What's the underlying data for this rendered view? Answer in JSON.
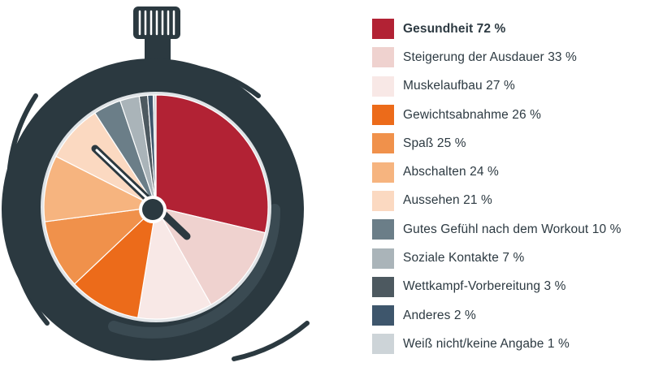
{
  "chart_data": {
    "type": "pie",
    "title": "",
    "slices": [
      {
        "label": "Gesundheit 72 %",
        "value": 72,
        "color": "#b22234"
      },
      {
        "label": "Steigerung der Ausdauer 33 %",
        "value": 33,
        "color": "#efd2cf"
      },
      {
        "label": "Muskelaufbau 27 %",
        "value": 27,
        "color": "#f8e8e6"
      },
      {
        "label": "Gewichtsabnahme 26 %",
        "value": 26,
        "color": "#ec6b1a"
      },
      {
        "label": "Spaß 25 %",
        "value": 25,
        "color": "#f0914b"
      },
      {
        "label": "Abschalten 24 %",
        "value": 24,
        "color": "#f6b47f"
      },
      {
        "label": "Aussehen 21 %",
        "value": 21,
        "color": "#fbd9c1"
      },
      {
        "label": "Gutes Gefühl nach dem Workout 10 %",
        "value": 10,
        "color": "#6b7e88"
      },
      {
        "label": "Soziale Kontakte 7 %",
        "value": 7,
        "color": "#aab4b9"
      },
      {
        "label": "Wettkampf-Vorbereitung 3 %",
        "value": 3,
        "color": "#4d5960"
      },
      {
        "label": "Anderes 2 %",
        "value": 2,
        "color": "#3e566c"
      },
      {
        "label": "Weiß nicht/keine Angabe 1 %",
        "value": 1,
        "color": "#cdd4d8"
      }
    ]
  },
  "colors": {
    "watch_body": "#2b3940",
    "watch_ring": "#dfe3e6"
  }
}
